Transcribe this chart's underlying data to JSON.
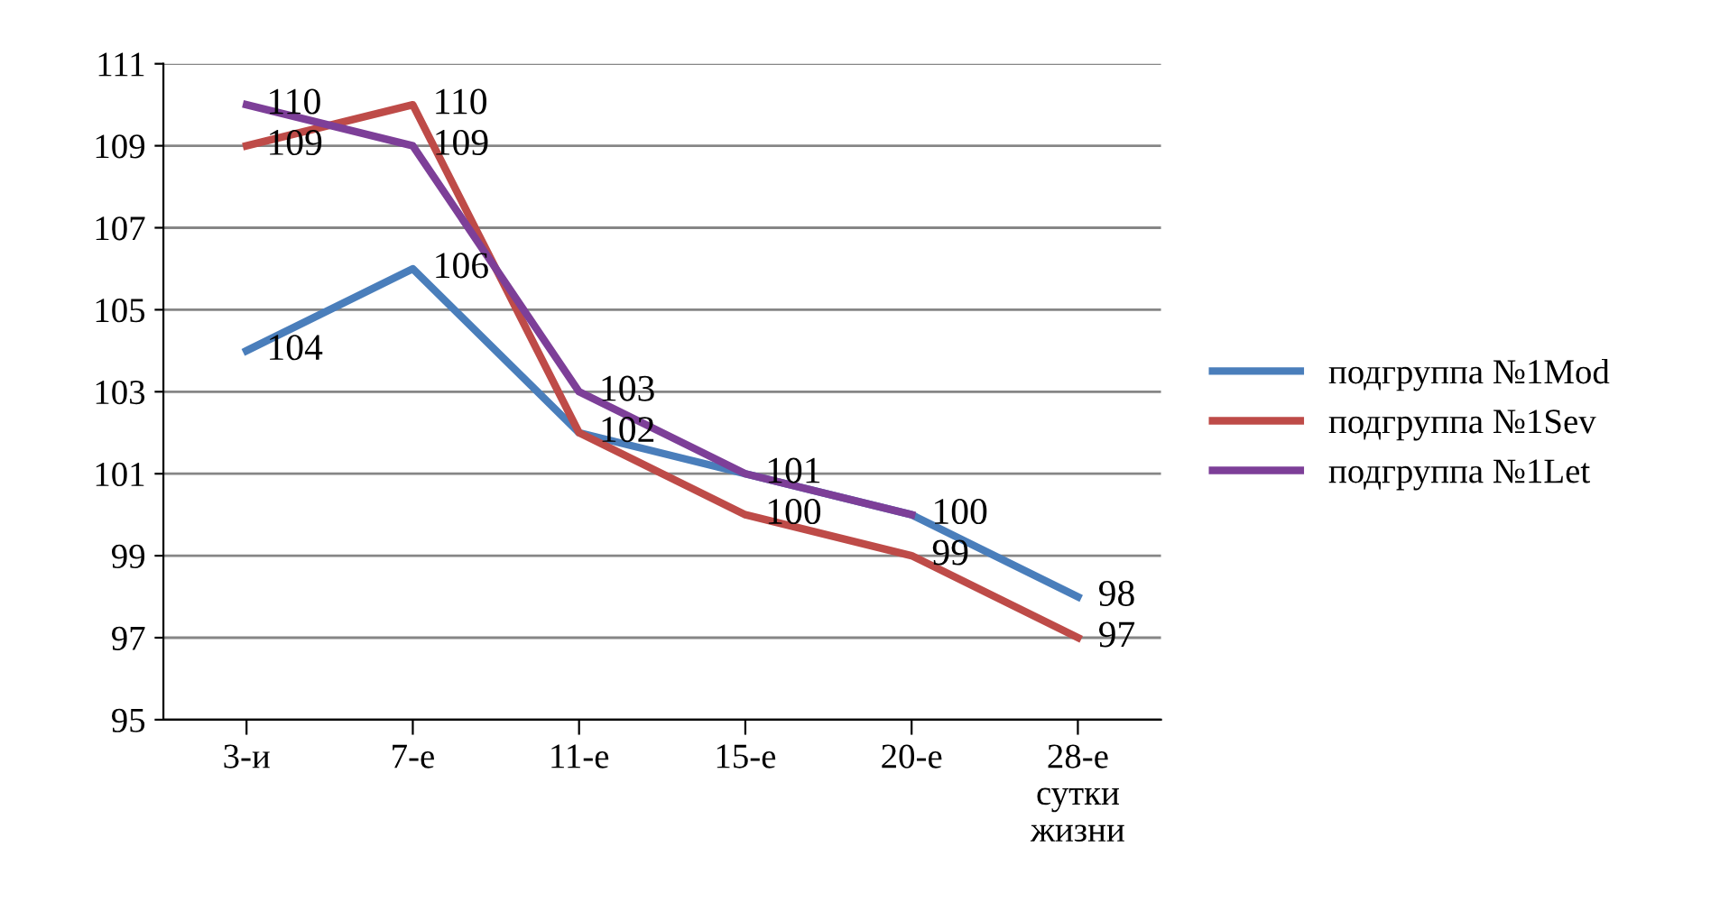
{
  "chart_data": {
    "type": "line",
    "categories": [
      "3-и",
      "7-е",
      "11-е",
      "15-е",
      "20-е",
      "28-е\nсутки\nжизни"
    ],
    "series": [
      {
        "name": "подгруппа №1Mod",
        "color": "#4a7ebb",
        "values": [
          104,
          106,
          102,
          101,
          100,
          98
        ],
        "value_labels": [
          "104",
          "106",
          null,
          null,
          null,
          "98"
        ]
      },
      {
        "name": "подгруппа №1Sev",
        "color": "#be4b48",
        "values": [
          109,
          110,
          102,
          100,
          99,
          97
        ],
        "value_labels": [
          "109",
          "110",
          "102",
          "100",
          "99",
          "97"
        ]
      },
      {
        "name": "подгруппа №1Let",
        "color": "#7d3f98",
        "values": [
          110,
          109,
          103,
          101,
          100,
          null
        ],
        "value_labels": [
          "110",
          "109",
          "103",
          "101",
          "100",
          null
        ]
      }
    ],
    "ylim": [
      95,
      111
    ],
    "yticks": [
      95,
      97,
      99,
      101,
      103,
      105,
      107,
      109,
      111
    ],
    "grid": "y",
    "legend": "right",
    "marker": "none",
    "line_style": "solid"
  }
}
